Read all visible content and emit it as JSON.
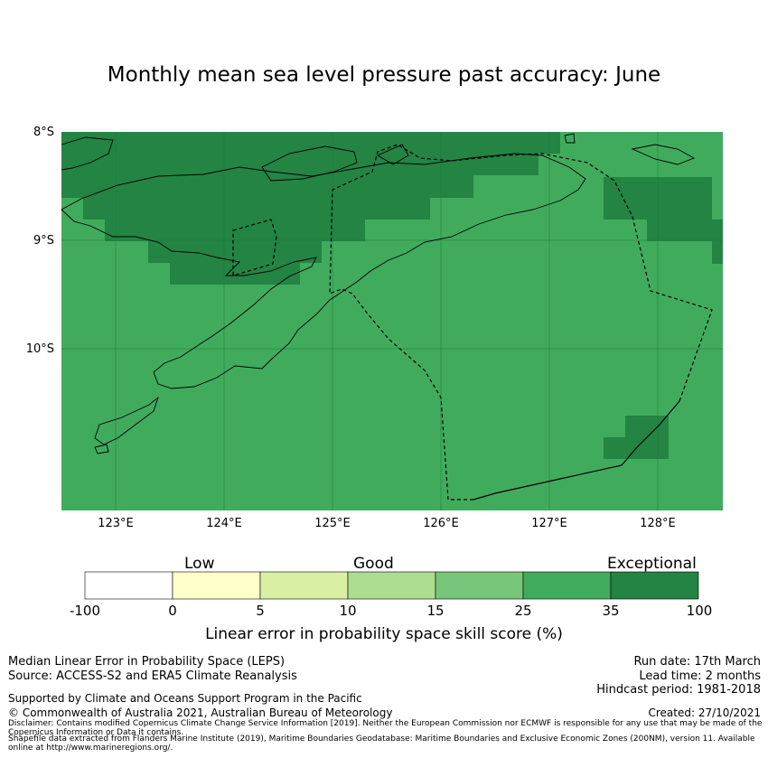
{
  "title": "Monthly mean sea level pressure past accuracy: June",
  "map": {
    "lat_labels": [
      "8°S",
      "9°S",
      "10°S"
    ],
    "lon_labels": [
      "123°E",
      "124°E",
      "125°E",
      "126°E",
      "127°E",
      "128°E"
    ],
    "lon_range": [
      122.5,
      128.6
    ],
    "lat_range": [
      -11.5,
      -8.0
    ]
  },
  "colorbar": {
    "categories": [
      "Low",
      "Good",
      "Exceptional"
    ],
    "ticks": [
      "-100",
      "0",
      "5",
      "10",
      "15",
      "25",
      "35",
      "100"
    ],
    "colors": [
      "#ffffff",
      "#ffffcc",
      "#d9f0a3",
      "#addd8e",
      "#78c679",
      "#41ab5d",
      "#238443"
    ],
    "label": "Linear error in probability space skill score (%)"
  },
  "footer": {
    "left1": "Median Linear Error in Probability Space (LEPS)",
    "left2": "Source: ACCESS-S2 and ERA5 Climate Reanalysis",
    "left3": "Supported by Climate and Oceans Support Program in the Pacific",
    "left4": "© Commonwealth of Australia 2021, Australian Bureau of Meteorology",
    "right1": "Run date: 17th March",
    "right2": "Lead time: 2 months",
    "right3": "Hindcast period: 1981-2018",
    "right4": "Created: 27/10/2021",
    "disclaimer1": "Disclaimer: Contains modified Copernicus Climate Change Service Information [2019]. Neither the European Commission nor ECMWF is responsible for any use that may be made of the Copernicus Information or Data it contains.",
    "disclaimer2": "Shapefile data extracted from Flanders Marine Institute (2019), Maritime Boundaries Geodatabase: Maritime Boundaries and Exclusive Economic Zones (200NM), version 11. Available online at http://www.marineregions.org/."
  }
}
